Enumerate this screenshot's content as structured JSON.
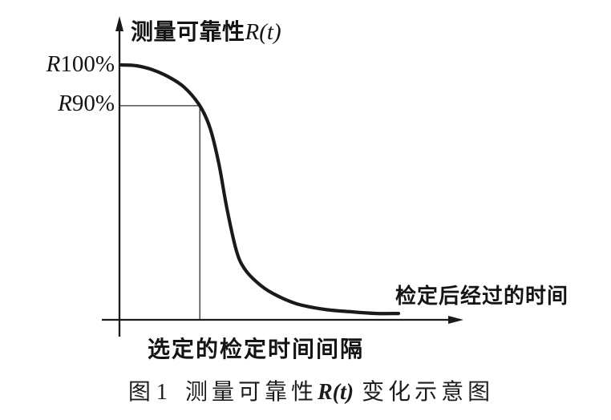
{
  "figure": {
    "background": "#ffffff",
    "ink": "#1a1a1a",
    "guide_ink": "#2e2e2e"
  },
  "y_axis": {
    "label_cjk": "测量可靠性",
    "label_math": "R(t)"
  },
  "x_axis": {
    "label": "检定后经过的时间"
  },
  "reference_labels": {
    "r100_prefix": "R",
    "r100_value": "100%",
    "r90_prefix": "R",
    "r90_value": "90%"
  },
  "interval_label": "选定的检定时间间隔",
  "caption": {
    "fig_no": "图 1",
    "title_cjk": "测量可靠性",
    "title_math": "R(t)",
    "title_tail": "变化示意图"
  },
  "chart_data": {
    "type": "line",
    "title": "图1 测量可靠性R(t)变化示意图",
    "xlabel": "检定后经过的时间",
    "ylabel": "测量可靠性R(t)",
    "x_axis_numeric": false,
    "y_axis_numeric": false,
    "grid": false,
    "y_marks": [
      "R100%",
      "R90%"
    ],
    "x_annotation": "选定的检定时间间隔",
    "reference_point": {
      "t_frac": 0.234,
      "r_frac": 0.84,
      "y_label": "R90%",
      "x_label": "选定的检定时间间隔"
    },
    "series": [
      {
        "name": "R(t)",
        "shape": "reverse-sigmoid",
        "points_t_r": [
          [
            0.005,
            1.0
          ],
          [
            0.049,
            0.997
          ],
          [
            0.096,
            0.981
          ],
          [
            0.143,
            0.953
          ],
          [
            0.189,
            0.912
          ],
          [
            0.234,
            0.84
          ],
          [
            0.264,
            0.752
          ],
          [
            0.29,
            0.61
          ],
          [
            0.313,
            0.437
          ],
          [
            0.341,
            0.27
          ],
          [
            0.364,
            0.201
          ],
          [
            0.4,
            0.148
          ],
          [
            0.446,
            0.104
          ],
          [
            0.516,
            0.063
          ],
          [
            0.598,
            0.041
          ],
          [
            0.68,
            0.031
          ],
          [
            0.75,
            0.025
          ],
          [
            0.813,
            0.025
          ]
        ]
      }
    ]
  }
}
